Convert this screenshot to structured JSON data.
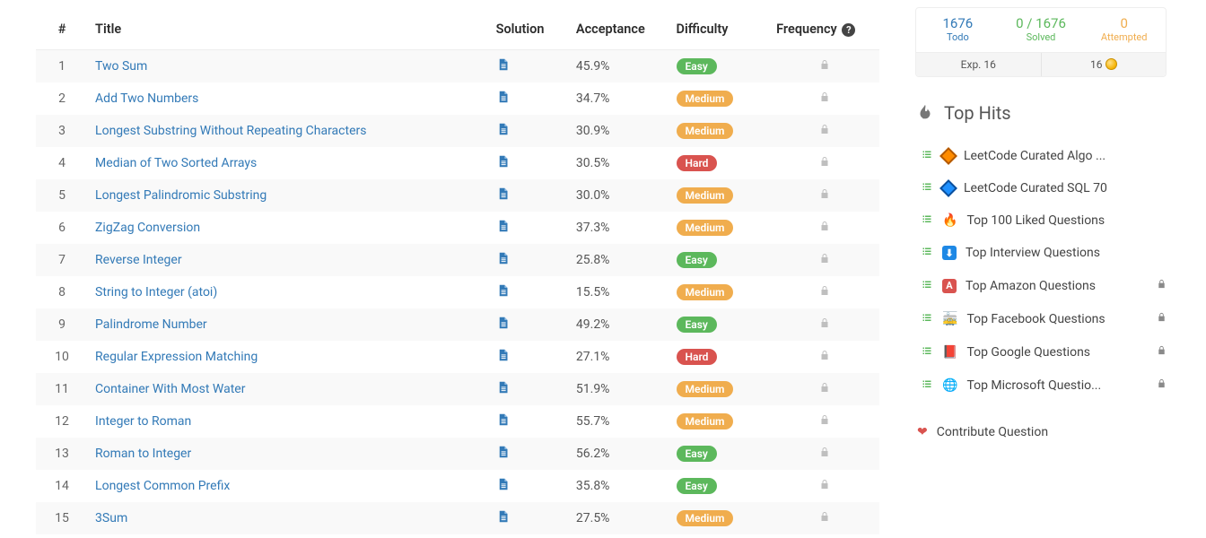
{
  "table": {
    "headers": {
      "num": "#",
      "title": "Title",
      "solution": "Solution",
      "acceptance": "Acceptance",
      "difficulty": "Difficulty",
      "frequency": "Frequency"
    },
    "rows": [
      {
        "num": "1",
        "title": "Two Sum",
        "acceptance": "45.9%",
        "difficulty": "Easy"
      },
      {
        "num": "2",
        "title": "Add Two Numbers",
        "acceptance": "34.7%",
        "difficulty": "Medium"
      },
      {
        "num": "3",
        "title": "Longest Substring Without Repeating Characters",
        "acceptance": "30.9%",
        "difficulty": "Medium"
      },
      {
        "num": "4",
        "title": "Median of Two Sorted Arrays",
        "acceptance": "30.5%",
        "difficulty": "Hard"
      },
      {
        "num": "5",
        "title": "Longest Palindromic Substring",
        "acceptance": "30.0%",
        "difficulty": "Medium"
      },
      {
        "num": "6",
        "title": "ZigZag Conversion",
        "acceptance": "37.3%",
        "difficulty": "Medium"
      },
      {
        "num": "7",
        "title": "Reverse Integer",
        "acceptance": "25.8%",
        "difficulty": "Easy"
      },
      {
        "num": "8",
        "title": "String to Integer (atoi)",
        "acceptance": "15.5%",
        "difficulty": "Medium"
      },
      {
        "num": "9",
        "title": "Palindrome Number",
        "acceptance": "49.2%",
        "difficulty": "Easy"
      },
      {
        "num": "10",
        "title": "Regular Expression Matching",
        "acceptance": "27.1%",
        "difficulty": "Hard"
      },
      {
        "num": "11",
        "title": "Container With Most Water",
        "acceptance": "51.9%",
        "difficulty": "Medium"
      },
      {
        "num": "12",
        "title": "Integer to Roman",
        "acceptance": "55.7%",
        "difficulty": "Medium"
      },
      {
        "num": "13",
        "title": "Roman to Integer",
        "acceptance": "56.2%",
        "difficulty": "Easy"
      },
      {
        "num": "14",
        "title": "Longest Common Prefix",
        "acceptance": "35.8%",
        "difficulty": "Easy"
      },
      {
        "num": "15",
        "title": "3Sum",
        "acceptance": "27.5%",
        "difficulty": "Medium"
      }
    ]
  },
  "sidebar": {
    "stats": {
      "todo": {
        "value": "1676",
        "label": "Todo"
      },
      "solved": {
        "value": "0 / 1676",
        "label": "Solved"
      },
      "attempt": {
        "value": "0",
        "label": "Attempted"
      },
      "exp": "Exp. 16",
      "points": "16"
    },
    "tophits_title": "Top Hits",
    "hits": [
      {
        "icon": "diamond-orange",
        "label": "LeetCode Curated Algo ...",
        "locked": false
      },
      {
        "icon": "diamond-blue",
        "label": "LeetCode Curated SQL 70",
        "locked": false
      },
      {
        "icon": "fire",
        "label": "Top 100 Liked Questions",
        "locked": false
      },
      {
        "icon": "download",
        "label": "Top Interview Questions",
        "locked": false
      },
      {
        "icon": "amazon",
        "label": "Top Amazon Questions",
        "locked": true
      },
      {
        "icon": "facebook",
        "label": "Top Facebook Questions",
        "locked": true
      },
      {
        "icon": "google",
        "label": "Top Google Questions",
        "locked": true
      },
      {
        "icon": "microsoft",
        "label": "Top Microsoft Questio...",
        "locked": true
      }
    ],
    "contribute": "Contribute Question"
  },
  "colors": {
    "link": "#337ab7",
    "easy": "#5cb85c",
    "medium": "#f0ad4e",
    "hard": "#d9534f",
    "row_alt": "#f9f9f9"
  }
}
